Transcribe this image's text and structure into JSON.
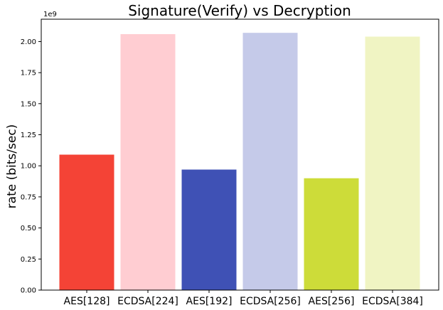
{
  "chart_data": {
    "type": "bar",
    "title": "Signature(Verify) vs Decryption",
    "xlabel": "",
    "ylabel": "rate (bits/sec)",
    "y_scale_label": "1e9",
    "categories": [
      "AES[128]",
      "ECDSA[224]",
      "AES[192]",
      "ECDSA[256]",
      "AES[256]",
      "ECDSA[384]"
    ],
    "values": [
      1.09,
      2.06,
      0.97,
      2.07,
      0.9,
      2.04
    ],
    "colors": [
      "#f44336",
      "#ffcdd2",
      "#3f51b5",
      "#c5cae9",
      "#cddc39",
      "#f0f4c3"
    ],
    "yticks": [
      0.0,
      0.25,
      0.5,
      0.75,
      1.0,
      1.25,
      1.5,
      1.75,
      2.0
    ],
    "ytick_labels": [
      "0.00",
      "0.25",
      "0.50",
      "0.75",
      "1.00",
      "1.25",
      "1.50",
      "1.75",
      "2.00"
    ],
    "ylim": [
      0,
      2.18
    ],
    "grid": false,
    "legend": "none"
  }
}
